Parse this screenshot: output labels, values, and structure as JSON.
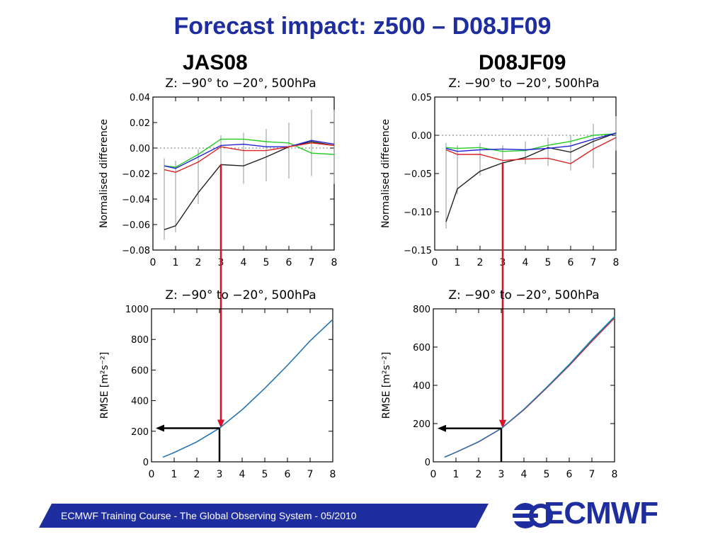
{
  "slide": {
    "title": "Forecast impact: z500 – D08JF09",
    "left_label": "JAS08",
    "right_label": "D08JF09"
  },
  "footer": {
    "text": "ECMWF Training Course - The Global Observing System - 05/2010",
    "band_color": "#1f2e9e"
  },
  "logo": {
    "text": "ECMWF",
    "color": "#1f2e9e"
  },
  "colors": {
    "title": "#1f2e9e",
    "arrow_red": "#d8102c",
    "arrow_black": "#000000",
    "black_series": "#222222",
    "green_series": "#22cc22",
    "blue_series": "#2222dd",
    "red_series": "#dd2222"
  },
  "chart_data": [
    {
      "type": "line",
      "panel": "top-left",
      "title": "Z: −90° to −20°, 500hPa",
      "xlabel": "",
      "ylabel": "Normalised difference",
      "xlim": [
        0,
        8
      ],
      "ylim": [
        -0.08,
        0.04
      ],
      "xticks": [
        0,
        1,
        2,
        3,
        4,
        5,
        6,
        7,
        8
      ],
      "yticks": [
        0.04,
        0.02,
        0.0,
        -0.02,
        -0.04,
        -0.06,
        -0.08
      ],
      "ytick_labels": [
        "0.04",
        "0.02",
        "0.00",
        "−0.02",
        "−0.04",
        "−0.06",
        "−0.08"
      ],
      "zero_line": true,
      "x": [
        0.5,
        1,
        2,
        3,
        4,
        5,
        6,
        7,
        8
      ],
      "series": [
        {
          "color": "#222222",
          "values": [
            -0.064,
            -0.061,
            -0.035,
            -0.013,
            -0.014,
            -0.007,
            0.001,
            0.005,
            0.002
          ]
        },
        {
          "color": "#22cc22",
          "values": [
            -0.014,
            -0.015,
            -0.005,
            0.007,
            0.007,
            0.005,
            0.004,
            -0.004,
            -0.005
          ]
        },
        {
          "color": "#2222dd",
          "values": [
            -0.014,
            -0.016,
            -0.007,
            0.002,
            0.003,
            0.001,
            0.001,
            0.006,
            0.003
          ]
        },
        {
          "color": "#dd2222",
          "values": [
            -0.017,
            -0.019,
            -0.011,
            0.001,
            -0.002,
            -0.002,
            0.001,
            0.004,
            0.002
          ]
        }
      ],
      "error_bars": [
        {
          "x": 0.5,
          "low": -0.072,
          "high": -0.008
        },
        {
          "x": 1,
          "low": -0.066,
          "high": -0.01
        },
        {
          "x": 2,
          "low": -0.044,
          "high": -0.001
        },
        {
          "x": 3,
          "low": -0.02,
          "high": 0.01
        },
        {
          "x": 4,
          "low": -0.028,
          "high": 0.012
        },
        {
          "x": 5,
          "low": -0.026,
          "high": 0.015
        },
        {
          "x": 6,
          "low": -0.024,
          "high": 0.02
        },
        {
          "x": 7,
          "low": -0.022,
          "high": 0.03
        },
        {
          "x": 8,
          "low": -0.028,
          "high": 0.03
        }
      ],
      "arrow": {
        "x": 3
      }
    },
    {
      "type": "line",
      "panel": "top-right",
      "title": "Z: −90° to −20°, 500hPa",
      "xlabel": "",
      "ylabel": "Normalised difference",
      "xlim": [
        0,
        8
      ],
      "ylim": [
        -0.15,
        0.05
      ],
      "xticks": [
        0,
        1,
        2,
        3,
        4,
        5,
        6,
        7,
        8
      ],
      "yticks": [
        0.05,
        0.0,
        -0.05,
        -0.1,
        -0.15
      ],
      "ytick_labels": [
        "0.05",
        "0.00",
        "−0.05",
        "−0.10",
        "−0.15"
      ],
      "zero_line": true,
      "x": [
        0.5,
        1,
        2,
        3,
        4,
        5,
        6,
        7,
        8
      ],
      "series": [
        {
          "color": "#222222",
          "values": [
            -0.113,
            -0.07,
            -0.047,
            -0.036,
            -0.029,
            -0.016,
            -0.022,
            -0.008,
            0.003
          ]
        },
        {
          "color": "#22cc22",
          "values": [
            -0.016,
            -0.017,
            -0.016,
            -0.021,
            -0.02,
            -0.013,
            -0.008,
            0.0,
            0.002
          ]
        },
        {
          "color": "#2222dd",
          "values": [
            -0.017,
            -0.021,
            -0.019,
            -0.018,
            -0.019,
            -0.017,
            -0.014,
            -0.005,
            0.003
          ]
        },
        {
          "color": "#dd2222",
          "values": [
            -0.019,
            -0.025,
            -0.025,
            -0.033,
            -0.031,
            -0.03,
            -0.037,
            -0.018,
            -0.003
          ]
        }
      ],
      "error_bars": [
        {
          "x": 0.5,
          "low": -0.122,
          "high": -0.01
        },
        {
          "x": 1,
          "low": -0.077,
          "high": -0.013
        },
        {
          "x": 2,
          "low": -0.053,
          "high": -0.01
        },
        {
          "x": 3,
          "low": -0.044,
          "high": -0.013
        },
        {
          "x": 4,
          "low": -0.038,
          "high": -0.008
        },
        {
          "x": 5,
          "low": -0.04,
          "high": -0.003
        },
        {
          "x": 6,
          "low": -0.046,
          "high": 0.0
        },
        {
          "x": 7,
          "low": -0.043,
          "high": 0.015
        },
        {
          "x": 8,
          "low": -0.02,
          "high": 0.025
        }
      ],
      "arrow": {
        "x": 3
      }
    },
    {
      "type": "line",
      "panel": "bottom-left",
      "title": "Z: −90° to −20°, 500hPa",
      "xlabel": "",
      "ylabel": "RMSE [m²s⁻²]",
      "xlim": [
        0,
        8
      ],
      "ylim": [
        0,
        1000
      ],
      "xticks": [
        0,
        1,
        2,
        3,
        4,
        5,
        6,
        7,
        8
      ],
      "yticks": [
        1000,
        800,
        600,
        400,
        200,
        0
      ],
      "ytick_labels": [
        "1000",
        "800",
        "600",
        "400",
        "200",
        "0"
      ],
      "zero_line": false,
      "x": [
        0.5,
        1,
        2,
        3,
        4,
        5,
        6,
        7,
        8
      ],
      "series": [
        {
          "color": "#1aa3b8",
          "values": [
            30,
            60,
            130,
            220,
            340,
            480,
            630,
            790,
            930
          ]
        },
        {
          "color": "#2a6fb0",
          "values": [
            30,
            61,
            131,
            221,
            341,
            481,
            631,
            791,
            931
          ]
        }
      ],
      "error_bars": [],
      "arrow": {
        "x": 3,
        "y": 220
      }
    },
    {
      "type": "line",
      "panel": "bottom-right",
      "title": "Z: −90° to −20°, 500hPa",
      "xlabel": "",
      "ylabel": "RMSE [m²s⁻²]",
      "xlim": [
        0,
        8
      ],
      "ylim": [
        0,
        800
      ],
      "xticks": [
        0,
        1,
        2,
        3,
        4,
        5,
        6,
        7,
        8
      ],
      "yticks": [
        800,
        600,
        400,
        200,
        0
      ],
      "ytick_labels": [
        "800",
        "600",
        "400",
        "200",
        "0"
      ],
      "zero_line": false,
      "x": [
        0.5,
        1,
        2,
        3,
        4,
        5,
        6,
        7,
        8
      ],
      "series": [
        {
          "color": "#1aa3b8",
          "values": [
            25,
            50,
            105,
            175,
            275,
            390,
            510,
            640,
            760
          ]
        },
        {
          "color": "#dd2222",
          "values": [
            25,
            50,
            104,
            174,
            272,
            385,
            503,
            630,
            752
          ]
        },
        {
          "color": "#2a6fb0",
          "values": [
            25,
            50,
            105,
            175,
            274,
            388,
            507,
            636,
            757
          ]
        }
      ],
      "error_bars": [],
      "arrow": {
        "x": 3,
        "y": 175
      }
    }
  ]
}
